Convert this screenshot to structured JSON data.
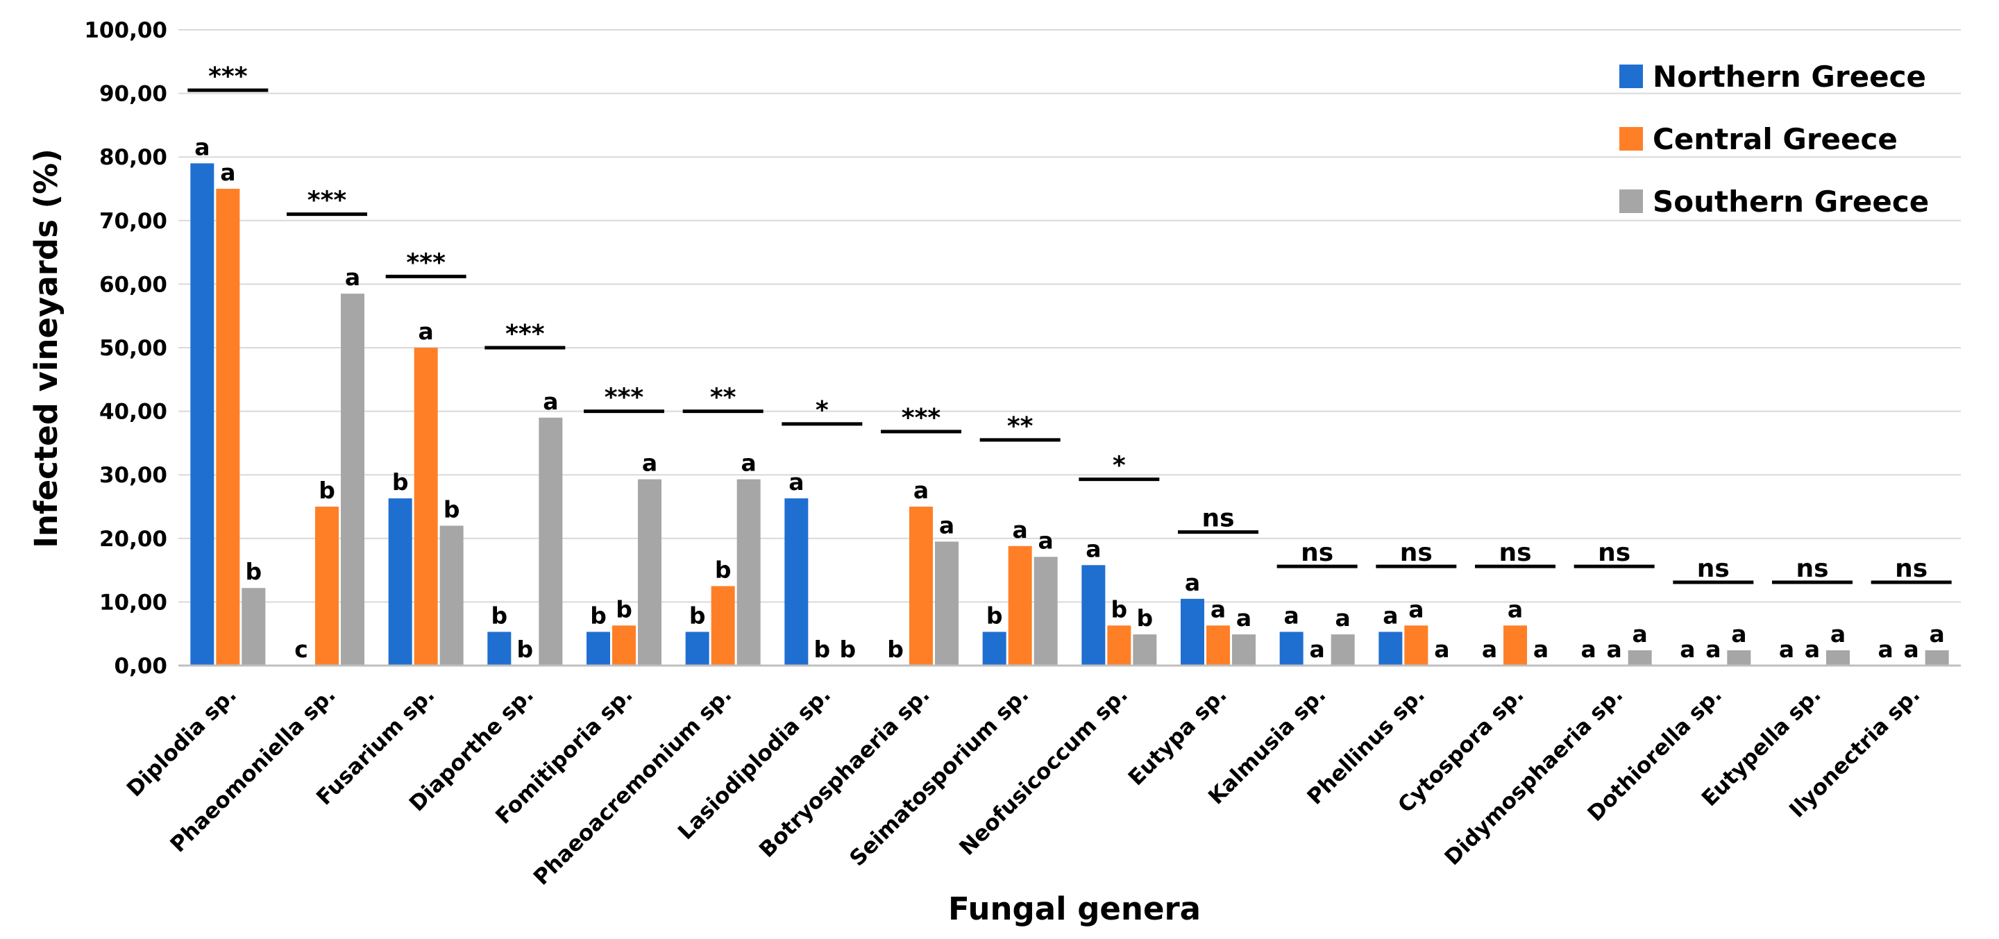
{
  "chart_data": {
    "type": "bar",
    "title": "",
    "xlabel": "Fungal genera",
    "ylabel": "Infected vineyards (%)",
    "ylim": [
      0,
      100
    ],
    "yticks": [
      0,
      10,
      20,
      30,
      40,
      50,
      60,
      70,
      80,
      90,
      100
    ],
    "ytick_labels": [
      "0,00",
      "10,00",
      "20,00",
      "30,00",
      "40,00",
      "50,00",
      "60,00",
      "70,00",
      "80,00",
      "90,00",
      "100,00"
    ],
    "grid": true,
    "legend_position": "top-right",
    "categories": [
      "Diplodia sp.",
      "Phaeomoniella sp.",
      "Fusarium sp.",
      "Diaporthe sp.",
      "Fomitiporia sp.",
      "Phaeoacremonium sp.",
      "Lasiodiplodia sp.",
      "Botryosphaeria sp.",
      "Seimatosporium sp.",
      "Neofusicoccum sp.",
      "Eutypa sp.",
      "Kalmusia sp.",
      "Phellinus sp.",
      "Cytospora sp.",
      "Didymosphaeria sp.",
      "Dothiorella sp.",
      "Eutypella sp.",
      "Ilyonectria sp."
    ],
    "series": [
      {
        "name": "Northern Greece",
        "color": "#1f6fd1",
        "values": [
          79,
          0,
          26.3,
          5.3,
          5.3,
          5.3,
          26.3,
          0,
          5.3,
          15.8,
          10.5,
          5.3,
          5.3,
          0,
          0,
          0,
          0,
          0
        ],
        "letters": [
          "a",
          "c",
          "b",
          "b",
          "b",
          "b",
          "a",
          "b",
          "b",
          "a",
          "a",
          "a",
          "a",
          "a",
          "a",
          "a",
          "a",
          "a"
        ]
      },
      {
        "name": "Central Greece",
        "color": "#ff7f27",
        "values": [
          75,
          25,
          50,
          0,
          6.3,
          12.5,
          0,
          25,
          18.8,
          6.3,
          6.3,
          0,
          6.3,
          6.3,
          0,
          0,
          0,
          0
        ],
        "letters": [
          "a",
          "b",
          "a",
          "b",
          "b",
          "b",
          "b",
          "a",
          "a",
          "b",
          "a",
          "a",
          "a",
          "a",
          "a",
          "a",
          "a",
          "a"
        ]
      },
      {
        "name": "Southern Greece",
        "color": "#a6a6a6",
        "values": [
          12.2,
          58.5,
          22,
          39,
          29.3,
          29.3,
          0,
          19.5,
          17.1,
          4.9,
          4.9,
          4.9,
          0,
          0,
          2.4,
          2.4,
          2.4,
          2.4
        ],
        "letters": [
          "b",
          "a",
          "b",
          "a",
          "a",
          "a",
          "b",
          "a",
          "a",
          "b",
          "a",
          "a",
          "a",
          "a",
          "a",
          "a",
          "a",
          "a"
        ]
      }
    ],
    "significance": [
      {
        "label": "***",
        "level": 90.5
      },
      {
        "label": "***",
        "level": 71
      },
      {
        "label": "***",
        "level": 61.2
      },
      {
        "label": "***",
        "level": 50
      },
      {
        "label": "***",
        "level": 40
      },
      {
        "label": "**",
        "level": 40
      },
      {
        "label": "*",
        "level": 38
      },
      {
        "label": "***",
        "level": 36.8
      },
      {
        "label": "**",
        "level": 35.5
      },
      {
        "label": "*",
        "level": 29.3
      },
      {
        "label": "ns",
        "level": 21
      },
      {
        "label": "ns",
        "level": 15.6
      },
      {
        "label": "ns",
        "level": 15.6
      },
      {
        "label": "ns",
        "level": 15.6
      },
      {
        "label": "ns",
        "level": 15.6
      },
      {
        "label": "ns",
        "level": 13.1
      },
      {
        "label": "ns",
        "level": 13.1
      },
      {
        "label": "ns",
        "level": 13.1
      }
    ]
  }
}
